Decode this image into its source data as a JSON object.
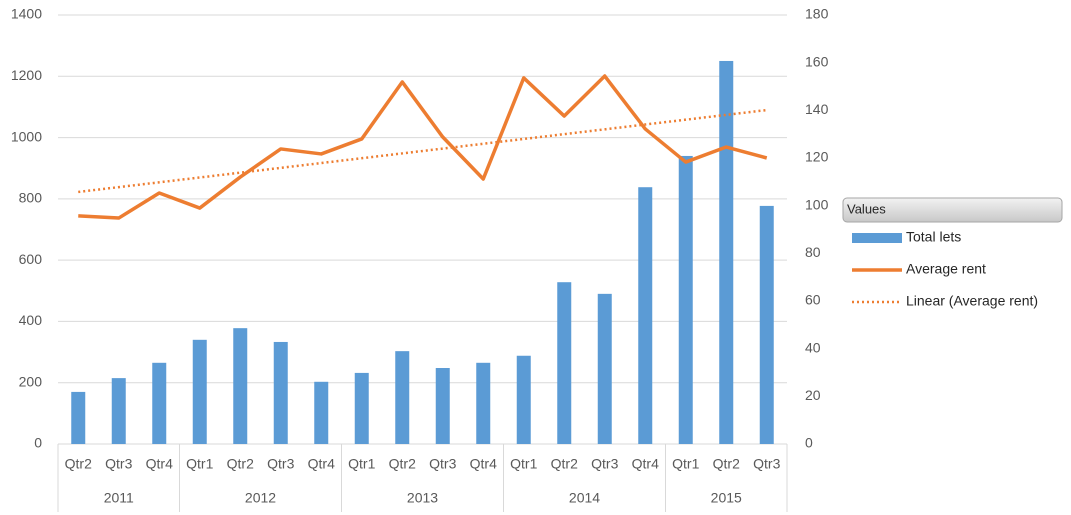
{
  "chart_data": {
    "type": "bar_line",
    "groups": [
      {
        "name": "2011",
        "quarters": [
          "Qtr2",
          "Qtr3",
          "Qtr4"
        ]
      },
      {
        "name": "2012",
        "quarters": [
          "Qtr1",
          "Qtr2",
          "Qtr3",
          "Qtr4"
        ]
      },
      {
        "name": "2013",
        "quarters": [
          "Qtr1",
          "Qtr2",
          "Qtr3",
          "Qtr4"
        ]
      },
      {
        "name": "2014",
        "quarters": [
          "Qtr1",
          "Qtr2",
          "Qtr3",
          "Qtr4"
        ]
      },
      {
        "name": "2015",
        "quarters": [
          "Qtr1",
          "Qtr2",
          "Qtr3"
        ]
      }
    ],
    "legend_title": "Values",
    "series": [
      {
        "name": "Total lets",
        "type": "bar",
        "color": "#5b9bd5",
        "values": [
          170,
          215,
          265,
          340,
          378,
          333,
          203,
          232,
          303,
          248,
          265,
          288,
          528,
          490,
          838,
          940,
          1250,
          777
        ]
      },
      {
        "name": "Average rent",
        "type": "line",
        "axis": "y2",
        "color": "#ed7d31",
        "values": [
          95.7,
          94.8,
          105.3,
          99,
          112,
          123.8,
          121.7,
          128,
          151.9,
          128.8,
          111.2,
          153.6,
          137.6,
          154.4,
          132.2,
          118.3,
          124.6,
          120
        ]
      }
    ],
    "trendline": {
      "name": "Linear (Average rent)",
      "of_series": 1,
      "kind": "linear",
      "color": "#ed7d31"
    },
    "ylim": [
      0,
      1400
    ],
    "yticks": [
      0,
      200,
      400,
      600,
      800,
      1000,
      1200,
      1400
    ],
    "y2lim": [
      0,
      180
    ],
    "y2ticks": [
      0,
      20,
      40,
      60,
      80,
      100,
      120,
      140,
      160,
      180
    ],
    "grid": true
  }
}
